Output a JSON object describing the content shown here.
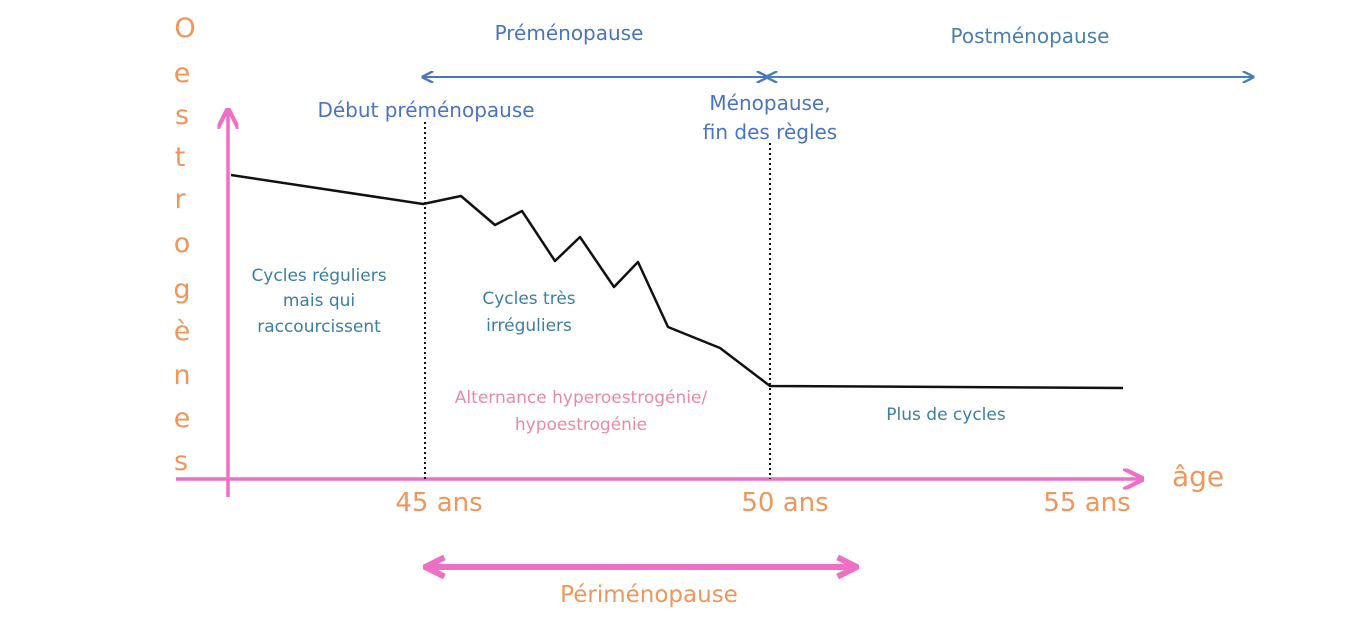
{
  "y_axis_label": [
    "O",
    "e",
    "s",
    "t",
    "r",
    "o",
    "g",
    "è",
    "n",
    "e",
    "s"
  ],
  "x_axis_label": "âge",
  "ticks": [
    "45 ans",
    "50 ans",
    "55 ans"
  ],
  "periods": {
    "premenopause": "Préménopause",
    "postmenopause": "Postménopause",
    "perimenopause": "Périménopause"
  },
  "markers": {
    "debut": "Début préménopause",
    "menopause_line1": "Ménopause,",
    "menopause_line2": "fin des règles"
  },
  "notes": {
    "regular": [
      "Cycles réguliers",
      "mais qui",
      "raccourcissent"
    ],
    "irregular": [
      "Cycles très",
      "irréguliers"
    ],
    "alternance": [
      "Alternance hyperoestrogénie/",
      "hypoestrogénie"
    ],
    "no_cycles": "Plus de cycles"
  },
  "colors": {
    "axis": "#ee6fc5",
    "orange_text": "#f0965a",
    "blue_arrow": "#4a73c2",
    "teal_arrow": "#4a7fae",
    "curve": "#111111"
  },
  "chart_data": {
    "type": "line",
    "description_points_age_level": [
      [
        40.7,
        77
      ],
      [
        45,
        69.5
      ],
      [
        45.5,
        71
      ],
      [
        46,
        61
      ],
      [
        46.5,
        67
      ],
      [
        47,
        51
      ],
      [
        47.5,
        60
      ],
      [
        48,
        42
      ],
      [
        48.5,
        53
      ],
      [
        49,
        38
      ],
      [
        49.7,
        32
      ],
      [
        50,
        22
      ],
      [
        55,
        22
      ]
    ]
  }
}
